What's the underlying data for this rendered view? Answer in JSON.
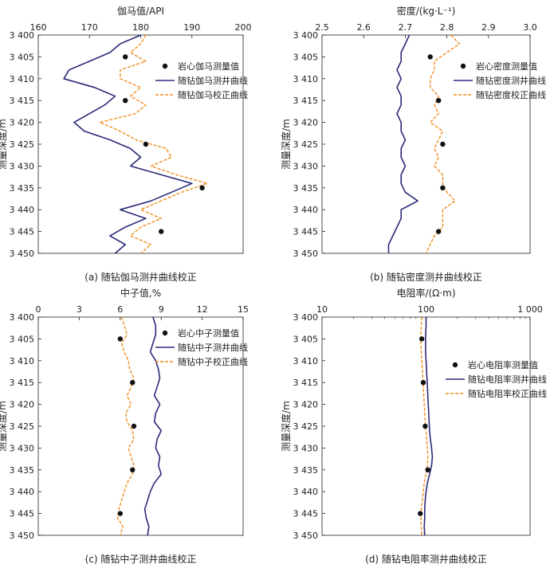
{
  "figure": {
    "legend_labels": {
      "gamma": [
        "岩心伽马测量值",
        "随钻伽马测井曲线",
        "随钻伽马校正曲线"
      ],
      "density": [
        "岩心密度测量值",
        "随钻密度测井曲线",
        "随钻密度校正曲线"
      ],
      "neutron": [
        "岩心中子测量值",
        "随钻中子测井曲线",
        "随钻中子校正曲线"
      ],
      "resistivity": [
        "岩心电阻率测量值",
        "随钻电阻率测井曲线",
        "随钻电阻率校正曲线"
      ]
    }
  },
  "colors": {
    "measured": "#111111",
    "logging": "#2a2a7a",
    "corrected": "#f08c1e"
  },
  "chart_data": [
    {
      "type": "line",
      "title": "伽马值/API",
      "caption": "(a) 随钻伽马测井曲线校正",
      "ylabel": "测量深度/m",
      "xlim": [
        160,
        200
      ],
      "xticks": [
        "160",
        "170",
        "180",
        "190",
        "200"
      ],
      "ylim": [
        3400,
        3450
      ],
      "yticks": [
        "3 400",
        "3 405",
        "3 410",
        "3 415",
        "3 420",
        "3 425",
        "3 430",
        "3 435",
        "3 440",
        "3 445",
        "3 450"
      ],
      "x_scale": "linear",
      "legend_position": "top-right",
      "series": [
        {
          "name": "随钻伽马测井曲线",
          "style": "solid",
          "depth": [
            3400,
            3402,
            3404,
            3406,
            3408,
            3410,
            3412,
            3414,
            3416,
            3418,
            3420,
            3422,
            3424,
            3426,
            3428,
            3430,
            3432,
            3434,
            3436,
            3438,
            3440,
            3442,
            3444,
            3446,
            3448,
            3450
          ],
          "values": [
            180,
            176,
            174,
            170,
            166,
            165,
            171,
            175,
            173,
            170,
            167,
            169,
            174,
            178,
            180,
            178,
            184,
            190,
            186,
            182,
            176,
            181,
            177,
            174,
            177,
            175
          ]
        },
        {
          "name": "随钻伽马校正曲线",
          "style": "dashed",
          "depth": [
            3400,
            3402,
            3404,
            3406,
            3408,
            3410,
            3412,
            3414,
            3416,
            3418,
            3420,
            3422,
            3424,
            3426,
            3428,
            3430,
            3432,
            3434,
            3436,
            3438,
            3440,
            3442,
            3444,
            3446,
            3448,
            3450
          ],
          "values": [
            181,
            180,
            178,
            181,
            176,
            176,
            180,
            178,
            181,
            179,
            172,
            176,
            179,
            185,
            186,
            182,
            187,
            193,
            188,
            184,
            180,
            184,
            180,
            178,
            182,
            180
          ]
        },
        {
          "name": "岩心伽马测量值",
          "style": "points",
          "depth": [
            3405,
            3415,
            3425,
            3435,
            3445
          ],
          "values": [
            177,
            177,
            181,
            192,
            184
          ]
        }
      ]
    },
    {
      "type": "line",
      "title": "密度/(kg·L⁻¹)",
      "caption": "(b) 随钻密度测井曲线校正",
      "ylabel": "测量深度/m",
      "xlim": [
        2.5,
        3.0
      ],
      "xticks": [
        "2.5",
        "2.6",
        "2.7",
        "2.8",
        "2.9",
        "3.0"
      ],
      "ylim": [
        3400,
        3450
      ],
      "yticks": [
        "3 400",
        "3 405",
        "3 410",
        "3 415",
        "3 420",
        "3 425",
        "3 430",
        "3 435",
        "3 440",
        "3 445",
        "3 450"
      ],
      "x_scale": "linear",
      "legend_position": "top-right",
      "series": [
        {
          "name": "随钻密度测井曲线",
          "style": "solid",
          "depth": [
            3400,
            3402,
            3404,
            3406,
            3408,
            3410,
            3412,
            3414,
            3416,
            3418,
            3420,
            3422,
            3424,
            3426,
            3428,
            3430,
            3432,
            3434,
            3436,
            3438,
            3440,
            3442,
            3444,
            3446,
            3448,
            3450
          ],
          "values": [
            2.71,
            2.7,
            2.69,
            2.69,
            2.68,
            2.69,
            2.68,
            2.69,
            2.69,
            2.68,
            2.69,
            2.69,
            2.7,
            2.69,
            2.69,
            2.7,
            2.69,
            2.69,
            2.7,
            2.73,
            2.69,
            2.69,
            2.68,
            2.67,
            2.66,
            2.66
          ]
        },
        {
          "name": "随钻密度校正曲线",
          "style": "dashed",
          "depth": [
            3400,
            3402,
            3404,
            3406,
            3408,
            3410,
            3412,
            3414,
            3416,
            3418,
            3420,
            3422,
            3424,
            3426,
            3428,
            3430,
            3432,
            3434,
            3436,
            3438,
            3440,
            3442,
            3444,
            3446,
            3448,
            3450
          ],
          "values": [
            2.81,
            2.83,
            2.8,
            2.77,
            2.77,
            2.76,
            2.76,
            2.78,
            2.77,
            2.78,
            2.76,
            2.79,
            2.78,
            2.77,
            2.78,
            2.77,
            2.79,
            2.79,
            2.8,
            2.82,
            2.79,
            2.79,
            2.79,
            2.77,
            2.76,
            2.75
          ]
        },
        {
          "name": "岩心密度测量值",
          "style": "points",
          "depth": [
            3405,
            3415,
            3425,
            3435,
            3445
          ],
          "values": [
            2.76,
            2.78,
            2.79,
            2.79,
            2.78
          ]
        }
      ]
    },
    {
      "type": "line",
      "title": "中子值,%",
      "caption": "(c) 随钻中子测井曲线校正",
      "ylabel": "测量深度/m",
      "xlim": [
        0,
        15
      ],
      "xticks": [
        "0",
        "3",
        "6",
        "9",
        "12",
        "15"
      ],
      "ylim": [
        3400,
        3450
      ],
      "yticks": [
        "3 400",
        "3 405",
        "3 410",
        "3 415",
        "3 420",
        "3 425",
        "3 430",
        "3 435",
        "3 440",
        "3 445",
        "3 450"
      ],
      "x_scale": "linear",
      "legend_position": "top-right",
      "series": [
        {
          "name": "随钻中子测井曲线",
          "style": "solid",
          "depth": [
            3400,
            3402,
            3404,
            3406,
            3408,
            3410,
            3412,
            3414,
            3416,
            3418,
            3420,
            3422,
            3424,
            3426,
            3428,
            3430,
            3432,
            3434,
            3436,
            3438,
            3440,
            3442,
            3444,
            3446,
            3448,
            3450
          ],
          "values": [
            8.4,
            8.6,
            8.6,
            8.4,
            8.2,
            8.6,
            8.8,
            8.9,
            8.7,
            8.5,
            8.9,
            8.6,
            8.5,
            9.0,
            8.7,
            8.6,
            8.9,
            8.8,
            9.0,
            8.5,
            8.2,
            8.0,
            7.8,
            7.9,
            8.1,
            8.0
          ]
        },
        {
          "name": "随钻中子校正曲线",
          "style": "dashed",
          "depth": [
            3400,
            3402,
            3404,
            3406,
            3408,
            3410,
            3412,
            3414,
            3416,
            3418,
            3420,
            3422,
            3424,
            3426,
            3428,
            3430,
            3432,
            3434,
            3436,
            3438,
            3440,
            3442,
            3444,
            3446,
            3448,
            3450
          ],
          "values": [
            6.1,
            6.3,
            6.5,
            6.1,
            6.3,
            6.6,
            6.7,
            7.0,
            6.8,
            6.5,
            6.8,
            6.4,
            6.5,
            6.9,
            7.0,
            6.6,
            6.8,
            7.0,
            6.9,
            6.5,
            6.3,
            6.1,
            5.9,
            5.8,
            6.2,
            6.0
          ]
        },
        {
          "name": "岩心中子测量值",
          "style": "points",
          "depth": [
            3405,
            3415,
            3425,
            3435,
            3445
          ],
          "values": [
            6.0,
            6.9,
            7.0,
            6.9,
            6.0
          ]
        }
      ]
    },
    {
      "type": "line",
      "title": "电阻率/(Ω·m)",
      "caption": "(d) 随钻电阻率测井曲线校正",
      "ylabel": "测量深度/m",
      "xlim": [
        10,
        1000
      ],
      "xticks": [
        "10",
        "100",
        "1 000"
      ],
      "ylim": [
        3400,
        3450
      ],
      "yticks": [
        "3 400",
        "3 405",
        "3 410",
        "3 415",
        "3 420",
        "3 425",
        "3 430",
        "3 435",
        "3 440",
        "3 445",
        "3 450"
      ],
      "x_scale": "log",
      "legend_position": "top-right",
      "series": [
        {
          "name": "随钻电阻率测井曲线",
          "style": "solid",
          "depth": [
            3400,
            3402,
            3404,
            3406,
            3408,
            3410,
            3412,
            3414,
            3416,
            3418,
            3420,
            3422,
            3424,
            3426,
            3428,
            3430,
            3432,
            3434,
            3436,
            3438,
            3440,
            3442,
            3444,
            3446,
            3448,
            3450
          ],
          "values": [
            100,
            100,
            99,
            99,
            99,
            100,
            101,
            102,
            103,
            104,
            105,
            106,
            107,
            108,
            110,
            113,
            115,
            113,
            108,
            103,
            100,
            98,
            97,
            97,
            96,
            97
          ]
        },
        {
          "name": "随钻电阻率校正曲线",
          "style": "dashed",
          "depth": [
            3400,
            3402,
            3404,
            3406,
            3408,
            3410,
            3412,
            3414,
            3416,
            3418,
            3420,
            3422,
            3424,
            3426,
            3428,
            3430,
            3432,
            3434,
            3436,
            3438,
            3440,
            3442,
            3444,
            3446,
            3448,
            3450
          ],
          "values": [
            91,
            90,
            89,
            89,
            90,
            91,
            92,
            93,
            94,
            95,
            96,
            97,
            98,
            100,
            101,
            103,
            104,
            103,
            100,
            96,
            94,
            92,
            90,
            89,
            90,
            91
          ]
        },
        {
          "name": "岩心电阻率测量值",
          "style": "points",
          "depth": [
            3405,
            3415,
            3425,
            3435,
            3445
          ],
          "values": [
            91,
            94,
            98,
            104,
            88
          ]
        }
      ]
    }
  ]
}
